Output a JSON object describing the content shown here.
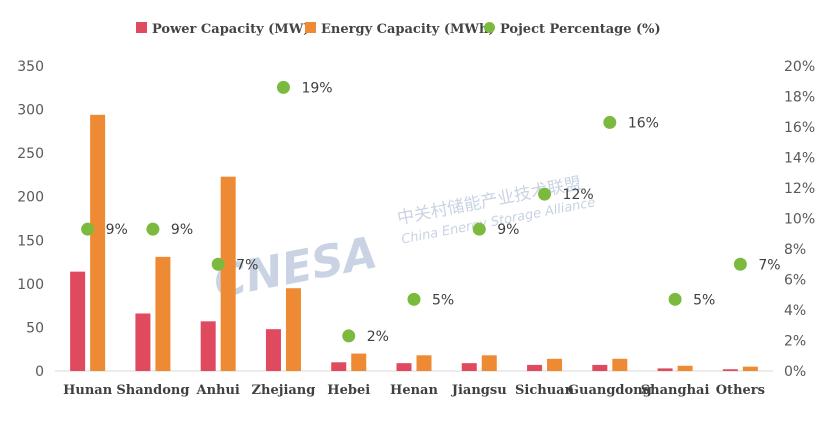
{
  "watermark": {
    "logo": "CNESA",
    "chinese": "中关村储能产业技术联盟",
    "english": "China Energy Storage Alliance"
  },
  "chart_data": {
    "type": "bar",
    "title": "",
    "categories": [
      "Hunan",
      "Shandong",
      "Anhui",
      "Zhejiang",
      "Hebei",
      "Henan",
      "Jiangsu",
      "Sichuan",
      "Guangdong",
      "Shanghai",
      "Others"
    ],
    "series": [
      {
        "name": "Power Capacity (MW)",
        "type": "bar",
        "axis": "left",
        "color": "#e04a5f",
        "values": [
          114,
          66,
          57,
          48,
          10,
          9,
          9,
          7,
          7,
          3,
          2
        ]
      },
      {
        "name": "Energy Capacity (MWh)",
        "type": "bar",
        "axis": "left",
        "color": "#ee8a34",
        "values": [
          294,
          131,
          223,
          95,
          20,
          18,
          18,
          14,
          14,
          6,
          5
        ]
      },
      {
        "name": "Poject Percentage (%)",
        "type": "scatter",
        "axis": "right",
        "color": "#7cba3f",
        "values": [
          9.3,
          9.3,
          7.0,
          18.6,
          2.3,
          4.7,
          9.3,
          11.6,
          16.3,
          4.7,
          7.0
        ],
        "labels": [
          "9%",
          "9%",
          "7%",
          "19%",
          "2%",
          "5%",
          "9%",
          "12%",
          "16%",
          "5%",
          "7%"
        ]
      }
    ],
    "ylim_left": [
      0,
      350
    ],
    "yticks_left": [
      "0",
      "50",
      "100",
      "150",
      "200",
      "250",
      "300",
      "350"
    ],
    "ylim_right": [
      0,
      20
    ],
    "yticks_right": [
      "0%",
      "2%",
      "4%",
      "6%",
      "8%",
      "10%",
      "12%",
      "14%",
      "16%",
      "18%",
      "20%"
    ],
    "xlabel": "",
    "ylabel": "",
    "legend_position": "top-center",
    "grid": false
  }
}
